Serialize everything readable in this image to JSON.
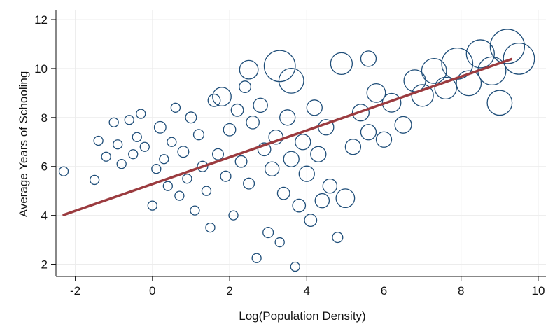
{
  "chart_data": {
    "type": "scatter",
    "title": "",
    "xlabel": "Log(Population Density)",
    "ylabel": "Average Years of Schooling",
    "xlim": [
      -2.5,
      10.2
    ],
    "ylim": [
      1.5,
      12.4
    ],
    "xticks": [
      "-2",
      "0",
      "2",
      "4",
      "6",
      "8",
      "10"
    ],
    "yticks": [
      "2",
      "4",
      "6",
      "8",
      "10",
      "12"
    ],
    "grid": "horizontal and vertical, light",
    "legend": "none",
    "marker": "hollow circle, size proportional to weight",
    "colors": {
      "points": "#1f4e79",
      "fit_line": "#9b3b3f",
      "grid": "#ececec",
      "axis": "#111111"
    },
    "fit_line": {
      "x": [
        -2.3,
        9.3
      ],
      "y": [
        4.02,
        10.38
      ]
    },
    "series": [
      {
        "points": [
          [
            -2.3,
            5.8,
            1
          ],
          [
            -1.5,
            5.45,
            1
          ],
          [
            -1.4,
            7.05,
            1
          ],
          [
            -1.2,
            6.4,
            1
          ],
          [
            -1.0,
            7.8,
            1
          ],
          [
            -0.9,
            6.9,
            1
          ],
          [
            -0.8,
            6.1,
            1
          ],
          [
            -0.6,
            7.9,
            1
          ],
          [
            -0.5,
            6.5,
            1
          ],
          [
            -0.4,
            7.2,
            1
          ],
          [
            -0.3,
            8.15,
            1
          ],
          [
            -0.2,
            6.8,
            1
          ],
          [
            0.0,
            4.4,
            1
          ],
          [
            0.1,
            5.9,
            1
          ],
          [
            0.2,
            7.6,
            1.4
          ],
          [
            0.3,
            6.3,
            1
          ],
          [
            0.4,
            5.2,
            1
          ],
          [
            0.5,
            7.0,
            1
          ],
          [
            0.6,
            8.4,
            1
          ],
          [
            0.7,
            4.8,
            1
          ],
          [
            0.8,
            6.6,
            1.3
          ],
          [
            0.9,
            5.5,
            1
          ],
          [
            1.0,
            8.0,
            1.3
          ],
          [
            1.1,
            4.2,
            1
          ],
          [
            1.2,
            7.3,
            1.2
          ],
          [
            1.3,
            6.0,
            1.2
          ],
          [
            1.4,
            5.0,
            1
          ],
          [
            1.5,
            3.5,
            1
          ],
          [
            1.6,
            8.7,
            1.5
          ],
          [
            1.7,
            6.5,
            1.3
          ],
          [
            1.8,
            8.85,
            2.5
          ],
          [
            1.9,
            5.6,
            1.2
          ],
          [
            2.0,
            7.5,
            1.5
          ],
          [
            2.1,
            4.0,
            1
          ],
          [
            2.2,
            8.3,
            1.5
          ],
          [
            2.3,
            6.2,
            1.4
          ],
          [
            2.4,
            9.25,
            1.4
          ],
          [
            2.5,
            5.3,
            1.3
          ],
          [
            2.6,
            7.8,
            1.6
          ],
          [
            2.7,
            2.25,
            1
          ],
          [
            2.8,
            8.5,
            1.8
          ],
          [
            2.9,
            6.7,
            1.6
          ],
          [
            3.0,
            3.3,
            1.2
          ],
          [
            3.1,
            5.9,
            1.8
          ],
          [
            3.2,
            7.2,
            1.8
          ],
          [
            3.3,
            2.9,
            1
          ],
          [
            3.4,
            4.9,
            1.5
          ],
          [
            3.5,
            8.0,
            2.0
          ],
          [
            3.6,
            6.3,
            2.0
          ],
          [
            3.7,
            1.9,
            1
          ],
          [
            3.8,
            4.4,
            1.6
          ],
          [
            3.9,
            7.0,
            2.0
          ],
          [
            4.0,
            5.7,
            2.0
          ],
          [
            4.1,
            3.8,
            1.5
          ],
          [
            4.2,
            8.4,
            2.0
          ],
          [
            4.3,
            6.5,
            2.0
          ],
          [
            4.4,
            4.6,
            1.8
          ],
          [
            4.5,
            7.6,
            2.0
          ],
          [
            4.6,
            5.2,
            1.8
          ],
          [
            4.8,
            3.1,
            1.2
          ],
          [
            5.0,
            4.7,
            2.5
          ],
          [
            5.2,
            6.8,
            2.0
          ],
          [
            5.4,
            8.2,
            2.2
          ],
          [
            5.6,
            7.4,
            2.0
          ],
          [
            5.8,
            9.0,
            2.5
          ],
          [
            6.0,
            7.1,
            2.0
          ],
          [
            6.2,
            8.6,
            2.5
          ],
          [
            6.5,
            7.7,
            2.2
          ],
          [
            6.8,
            9.5,
            3.0
          ],
          [
            7.0,
            8.9,
            3.0
          ],
          [
            7.3,
            9.9,
            3.5
          ],
          [
            7.6,
            9.2,
            3.0
          ],
          [
            7.9,
            10.2,
            4.5
          ],
          [
            8.2,
            9.4,
            3.5
          ],
          [
            8.5,
            10.6,
            4.0
          ],
          [
            8.8,
            9.9,
            4.0
          ],
          [
            9.0,
            8.6,
            3.5
          ],
          [
            9.2,
            10.9,
            5.0
          ],
          [
            9.5,
            10.4,
            4.5
          ],
          [
            2.5,
            9.95,
            2.5
          ],
          [
            3.3,
            10.1,
            4.5
          ],
          [
            3.6,
            9.5,
            3.5
          ],
          [
            4.9,
            10.2,
            3.0
          ],
          [
            5.6,
            10.4,
            2.0
          ]
        ]
      }
    ]
  }
}
